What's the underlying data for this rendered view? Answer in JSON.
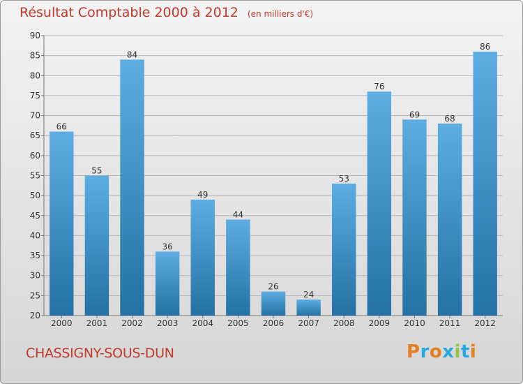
{
  "title": "Résultat Comptable 2000 à 2012",
  "unit_note": "(en milliers d'€)",
  "place": "CHASSIGNY-SOUS-DUN",
  "logo": {
    "text": "Proxiti",
    "letter_colors": [
      "#e67e22",
      "#27a9e1",
      "#e67e22",
      "#27a9e1",
      "#8cc63f",
      "#27a9e1",
      "#e67e22"
    ]
  },
  "colors": {
    "title": "#c0392b",
    "bar_light": "#5dade2",
    "bar_dark": "#2471a3",
    "grid": "#b8b8b8"
  },
  "chart_data": {
    "type": "bar",
    "title": "Résultat Comptable 2000 à 2012",
    "categories": [
      "2000",
      "2001",
      "2002",
      "2003",
      "2004",
      "2005",
      "2006",
      "2007",
      "2008",
      "2009",
      "2010",
      "2011",
      "2012"
    ],
    "values": [
      66,
      55,
      84,
      36,
      49,
      44,
      26,
      24,
      53,
      76,
      69,
      68,
      86
    ],
    "ylim": [
      20,
      90
    ],
    "yticks": [
      20,
      25,
      30,
      35,
      40,
      45,
      50,
      55,
      60,
      65,
      70,
      75,
      80,
      85,
      90
    ],
    "grid": true,
    "data_labels": true
  }
}
